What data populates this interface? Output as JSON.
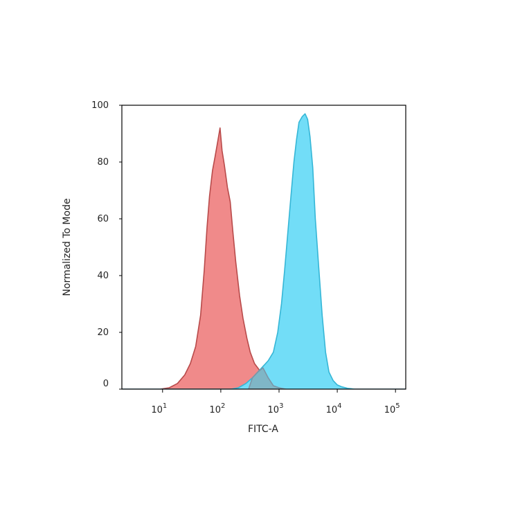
{
  "chart_data": {
    "type": "area",
    "xlabel": "FITC-A",
    "ylabel": "Normalized To Mode",
    "xscale": "log",
    "xlim": [
      2,
      150000
    ],
    "ylim": [
      0,
      100
    ],
    "yticks": [
      "0",
      "20",
      "40",
      "60",
      "80",
      "100"
    ],
    "xticks": [
      {
        "base": "10",
        "exp": "1"
      },
      {
        "base": "10",
        "exp": "2"
      },
      {
        "base": "10",
        "exp": "3"
      },
      {
        "base": "10",
        "exp": "4"
      },
      {
        "base": "10",
        "exp": "5"
      }
    ],
    "grid": false,
    "legend": false,
    "series": [
      {
        "color": "#f08a8a",
        "stroke": "#b84a4a",
        "points": [
          [
            2,
            0
          ],
          [
            9,
            0
          ],
          [
            13,
            0.5
          ],
          [
            18,
            2
          ],
          [
            24,
            5
          ],
          [
            30,
            9
          ],
          [
            37,
            15
          ],
          [
            45,
            26
          ],
          [
            52,
            42
          ],
          [
            58,
            57
          ],
          [
            64,
            68
          ],
          [
            72,
            77
          ],
          [
            80,
            82
          ],
          [
            90,
            88
          ],
          [
            97,
            92
          ],
          [
            105,
            84
          ],
          [
            115,
            79
          ],
          [
            130,
            71
          ],
          [
            145,
            66
          ],
          [
            160,
            56
          ],
          [
            180,
            45
          ],
          [
            210,
            33
          ],
          [
            240,
            25
          ],
          [
            280,
            18
          ],
          [
            320,
            13
          ],
          [
            380,
            9
          ],
          [
            450,
            7
          ],
          [
            550,
            4
          ],
          [
            650,
            2.5
          ],
          [
            800,
            1.2
          ],
          [
            1000,
            0.5
          ],
          [
            1300,
            0
          ],
          [
            150000,
            0
          ]
        ]
      },
      {
        "color": "#72ddf7",
        "stroke": "#35b6d6",
        "points": [
          [
            2,
            0
          ],
          [
            150,
            0
          ],
          [
            200,
            0.5
          ],
          [
            270,
            2
          ],
          [
            350,
            4
          ],
          [
            430,
            6
          ],
          [
            530,
            8
          ],
          [
            650,
            10
          ],
          [
            800,
            13
          ],
          [
            950,
            20
          ],
          [
            1100,
            30
          ],
          [
            1250,
            42
          ],
          [
            1400,
            54
          ],
          [
            1600,
            68
          ],
          [
            1800,
            80
          ],
          [
            2000,
            88
          ],
          [
            2200,
            94
          ],
          [
            2500,
            96
          ],
          [
            2800,
            97
          ],
          [
            3100,
            95
          ],
          [
            3400,
            89
          ],
          [
            3800,
            78
          ],
          [
            4200,
            60
          ],
          [
            4800,
            43
          ],
          [
            5500,
            26
          ],
          [
            6300,
            13
          ],
          [
            7200,
            6
          ],
          [
            8500,
            3
          ],
          [
            10000,
            1.5
          ],
          [
            12000,
            0.8
          ],
          [
            15000,
            0.3
          ],
          [
            20000,
            0
          ],
          [
            150000,
            0
          ]
        ]
      },
      {
        "color": "#7fb6c6",
        "stroke": "#7c95a5",
        "points": [
          [
            300,
            0
          ],
          [
            350,
            4
          ],
          [
            430,
            6
          ],
          [
            530,
            7.5
          ],
          [
            650,
            4
          ],
          [
            800,
            1.2
          ],
          [
            1000,
            0.5
          ],
          [
            1300,
            0
          ]
        ]
      }
    ]
  }
}
